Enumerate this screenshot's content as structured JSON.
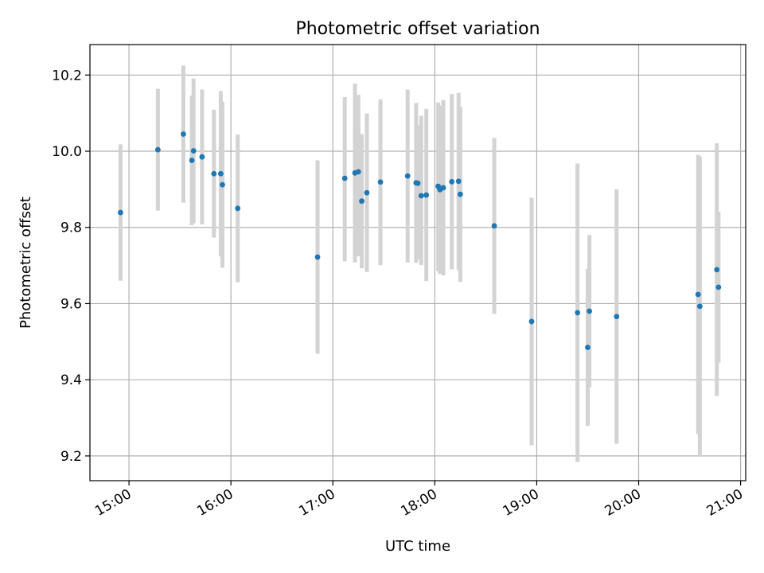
{
  "chart_data": {
    "type": "scatter",
    "title": "Photometric offset variation",
    "xlabel": "UTC time",
    "ylabel": "Photometric offset",
    "xlim": [
      "14:37",
      "21:03"
    ],
    "ylim": [
      9.135,
      10.28
    ],
    "x_ticks": [
      "15:00",
      "16:00",
      "17:00",
      "18:00",
      "19:00",
      "20:00",
      "21:00"
    ],
    "y_ticks": [
      "9.2",
      "9.4",
      "9.6",
      "9.8",
      "10.0",
      "10.2"
    ],
    "grid": true,
    "point_color": "#1f77b4",
    "errorbar_color": "#d3d3d3",
    "points": [
      {
        "x": "14:55",
        "y": 9.839,
        "lo": 9.66,
        "hi": 10.018
      },
      {
        "x": "15:17",
        "y": 10.004,
        "lo": 9.844,
        "hi": 10.164
      },
      {
        "x": "15:32",
        "y": 10.045,
        "lo": 9.865,
        "hi": 10.225
      },
      {
        "x": "15:37",
        "y": 9.976,
        "lo": 9.806,
        "hi": 10.146
      },
      {
        "x": "15:38",
        "y": 10.001,
        "lo": 9.811,
        "hi": 10.191
      },
      {
        "x": "15:43",
        "y": 9.985,
        "lo": 9.808,
        "hi": 10.162
      },
      {
        "x": "15:50",
        "y": 9.941,
        "lo": 9.773,
        "hi": 10.109
      },
      {
        "x": "15:54",
        "y": 9.941,
        "lo": 9.724,
        "hi": 10.158
      },
      {
        "x": "15:55",
        "y": 9.912,
        "lo": 9.694,
        "hi": 10.13
      },
      {
        "x": "16:04",
        "y": 9.85,
        "lo": 9.656,
        "hi": 10.044
      },
      {
        "x": "16:51",
        "y": 9.722,
        "lo": 9.468,
        "hi": 9.976
      },
      {
        "x": "17:07",
        "y": 9.929,
        "lo": 9.711,
        "hi": 10.142
      },
      {
        "x": "17:13",
        "y": 9.943,
        "lo": 9.708,
        "hi": 10.178
      },
      {
        "x": "17:15",
        "y": 9.946,
        "lo": 9.724,
        "hi": 10.148
      },
      {
        "x": "17:17",
        "y": 9.869,
        "lo": 9.693,
        "hi": 10.045
      },
      {
        "x": "17:20",
        "y": 9.891,
        "lo": 9.683,
        "hi": 10.099
      },
      {
        "x": "17:28",
        "y": 9.919,
        "lo": 9.701,
        "hi": 10.136
      },
      {
        "x": "17:44",
        "y": 9.935,
        "lo": 9.708,
        "hi": 10.162
      },
      {
        "x": "17:49",
        "y": 9.917,
        "lo": 9.707,
        "hi": 10.127
      },
      {
        "x": "17:50",
        "y": 9.916,
        "lo": 9.716,
        "hi": 10.068
      },
      {
        "x": "17:52",
        "y": 9.883,
        "lo": 9.701,
        "hi": 10.093
      },
      {
        "x": "17:55",
        "y": 9.885,
        "lo": 9.659,
        "hi": 10.111
      },
      {
        "x": "18:02",
        "y": 9.908,
        "lo": 9.685,
        "hi": 10.128
      },
      {
        "x": "18:03",
        "y": 9.899,
        "lo": 9.678,
        "hi": 10.12
      },
      {
        "x": "18:05",
        "y": 9.904,
        "lo": 9.674,
        "hi": 10.134
      },
      {
        "x": "18:10",
        "y": 9.92,
        "lo": 9.69,
        "hi": 10.15
      },
      {
        "x": "18:14",
        "y": 9.921,
        "lo": 9.689,
        "hi": 10.153
      },
      {
        "x": "18:15",
        "y": 9.887,
        "lo": 9.657,
        "hi": 10.117
      },
      {
        "x": "18:35",
        "y": 9.804,
        "lo": 9.573,
        "hi": 10.035
      },
      {
        "x": "18:57",
        "y": 9.553,
        "lo": 9.228,
        "hi": 9.878
      },
      {
        "x": "19:24",
        "y": 9.576,
        "lo": 9.184,
        "hi": 9.968
      },
      {
        "x": "19:30",
        "y": 9.485,
        "lo": 9.279,
        "hi": 9.691
      },
      {
        "x": "19:31",
        "y": 9.58,
        "lo": 9.38,
        "hi": 9.78
      },
      {
        "x": "19:47",
        "y": 9.566,
        "lo": 9.232,
        "hi": 9.9
      },
      {
        "x": "20:35",
        "y": 9.624,
        "lo": 9.258,
        "hi": 9.99
      },
      {
        "x": "20:36",
        "y": 9.593,
        "lo": 9.2,
        "hi": 9.986
      },
      {
        "x": "20:46",
        "y": 9.689,
        "lo": 9.357,
        "hi": 10.021
      },
      {
        "x": "20:47",
        "y": 9.643,
        "lo": 9.445,
        "hi": 9.841
      }
    ]
  }
}
